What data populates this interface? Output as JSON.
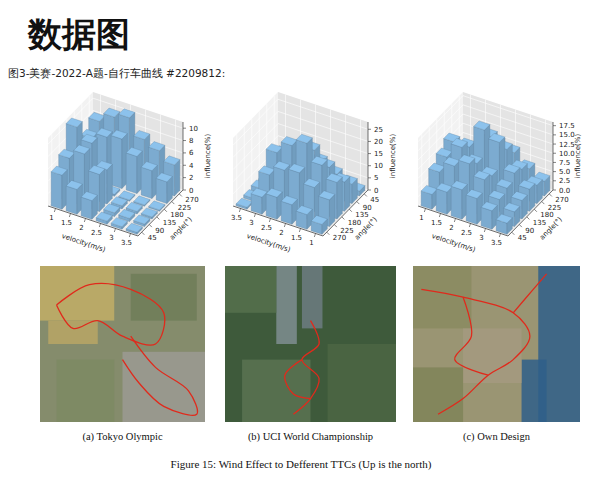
{
  "title": "数据图",
  "subtitle": "图3-美赛-2022-A题-自行车曲线 #2209812:",
  "chart_data": [
    {
      "type": "bar3d",
      "x_label": "velocity(m/s)",
      "y_label": "angle(°)",
      "z_label": "influence(%)",
      "x": [
        1,
        1.5,
        2,
        2.5,
        3,
        3.5
      ],
      "y": [
        45,
        90,
        135,
        180,
        225,
        270
      ],
      "values": [
        [
          5.5,
          7.0,
          10.8,
          0.4,
          6.5,
          8.0
        ],
        [
          4.0,
          8.5,
          9.0,
          0.3,
          7.5,
          9.5
        ],
        [
          3.0,
          6.0,
          5.5,
          0.3,
          8.0,
          10.2
        ],
        [
          0.5,
          0.6,
          0.5,
          0.2,
          6.0,
          7.5
        ],
        [
          0.4,
          0.5,
          0.4,
          0.2,
          4.5,
          6.5
        ],
        [
          0.3,
          0.4,
          0.3,
          0.2,
          3.5,
          5.0
        ]
      ],
      "xlim": [
        0.75,
        3.75
      ],
      "xticks": [
        1,
        1.5,
        2,
        2.5,
        3,
        3.5
      ],
      "ylim": [
        22.5,
        292.5
      ],
      "yticks": [
        45,
        90,
        135,
        180,
        225,
        270
      ],
      "zlim": [
        0,
        11
      ],
      "zticks": [
        0,
        2,
        4,
        6,
        8,
        10
      ],
      "color": "#8cc2ec",
      "grid": true
    },
    {
      "type": "bar3d",
      "x_label": "velocity(m/s)",
      "y_label": "angle(°)",
      "z_label": "influence(%)",
      "x": [
        1,
        1.5,
        2,
        2.5,
        3,
        3.5
      ],
      "y": [
        45,
        90,
        135,
        180,
        225,
        270
      ],
      "values": [
        [
          2,
          8,
          12,
          15,
          11,
          4
        ],
        [
          3,
          10,
          16,
          20,
          14,
          6
        ],
        [
          4,
          13,
          21,
          27,
          18,
          8
        ],
        [
          3,
          12,
          19,
          24,
          17,
          9
        ],
        [
          1,
          9,
          15,
          19,
          13,
          7
        ],
        [
          0.5,
          1,
          1.5,
          2,
          1.2,
          0.8
        ]
      ],
      "xlim": [
        3.75,
        0.75
      ],
      "xticks": [
        1,
        1.5,
        2,
        2.5,
        3,
        3.5
      ],
      "ylim": [
        292.5,
        22.5
      ],
      "yticks": [
        45,
        90,
        135,
        180,
        225,
        270
      ],
      "zlim": [
        0,
        28
      ],
      "zticks": [
        0,
        5,
        10,
        15,
        20,
        25
      ],
      "color": "#8cc2ec",
      "grid": true
    },
    {
      "type": "bar3d",
      "x_label": "velocity(m/s)",
      "y_label": "angle(°)",
      "z_label": "influence(%)",
      "x": [
        1,
        1.5,
        2,
        2.5,
        3,
        3.5
      ],
      "y": [
        45,
        90,
        135,
        180,
        225,
        270
      ],
      "values": [
        [
          4,
          8,
          10,
          12,
          7,
          3
        ],
        [
          6,
          11,
          14,
          12,
          9,
          5
        ],
        [
          8,
          13,
          11,
          18,
          14,
          10
        ],
        [
          7,
          10,
          9,
          16,
          12,
          9
        ],
        [
          5,
          6,
          7,
          9,
          8,
          6
        ],
        [
          3,
          4,
          5,
          6,
          5,
          4
        ]
      ],
      "xlim": [
        0.75,
        3.75
      ],
      "xticks": [
        1,
        1.5,
        2,
        2.5,
        3,
        3.5
      ],
      "ylim": [
        22.5,
        292.5
      ],
      "yticks": [
        45,
        90,
        135,
        180,
        225,
        270
      ],
      "zlim": [
        0,
        18.5
      ],
      "zticks": [
        {
          "value": 0,
          "label": "0.0"
        },
        {
          "value": 2.5,
          "label": "2.5"
        },
        {
          "value": 5,
          "label": "5.0"
        },
        {
          "value": 7.5,
          "label": "7.5"
        },
        {
          "value": 10,
          "label": "10.0"
        },
        {
          "value": 12.5,
          "label": "12.5"
        },
        {
          "value": 15,
          "label": "15.0"
        },
        {
          "value": 17.5,
          "label": "17.5"
        }
      ],
      "color": "#8cc2ec",
      "grid": true
    }
  ],
  "panels": [
    {
      "label": "(a) Tokyo Olympic"
    },
    {
      "label": "(b) UCI World Championship"
    },
    {
      "label": "(c) Own Design"
    }
  ],
  "caption": "Figure 15: Wind Effect to Defferent TTCs (Up is the north)"
}
